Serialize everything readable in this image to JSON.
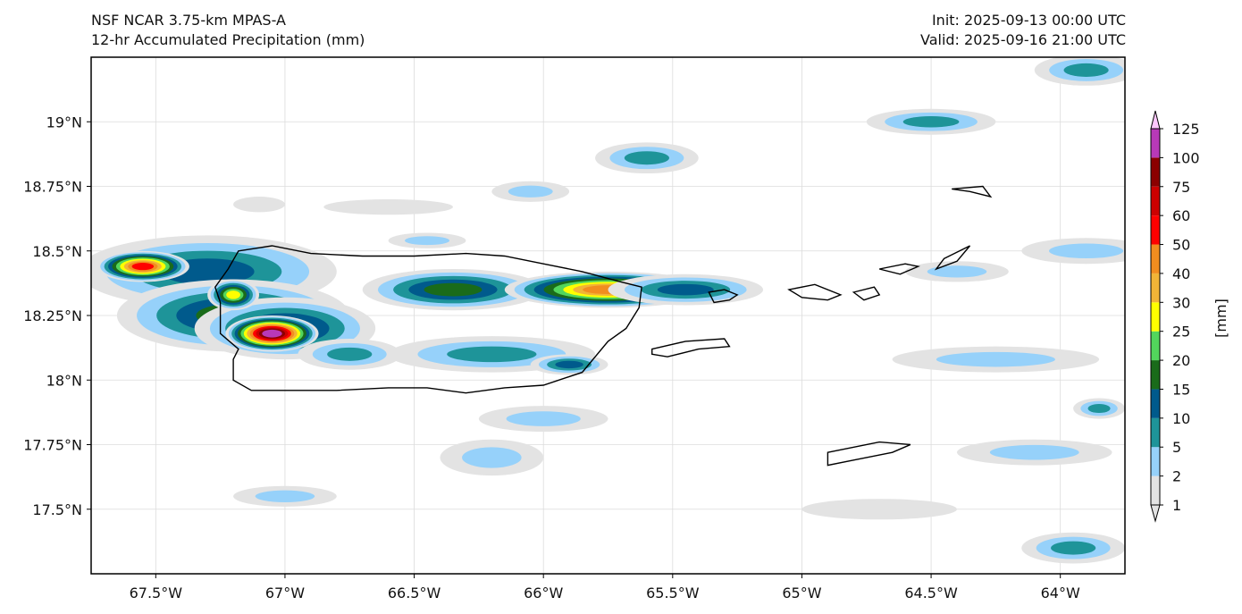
{
  "header": {
    "model": "NSF NCAR 3.75-km MPAS-A",
    "field": "12-hr Accumulated Precipitation (mm)",
    "init": "Init: 2025-09-13 00:00 UTC",
    "valid": "Valid: 2025-09-16 21:00 UTC"
  },
  "map": {
    "lon_range": [
      -67.75,
      -63.75
    ],
    "lat_range": [
      17.25,
      19.25
    ],
    "lon_ticks": [
      {
        "value": -67.5,
        "label": "67.5°W"
      },
      {
        "value": -67.0,
        "label": "67°W"
      },
      {
        "value": -66.5,
        "label": "66.5°W"
      },
      {
        "value": -66.0,
        "label": "66°W"
      },
      {
        "value": -65.5,
        "label": "65.5°W"
      },
      {
        "value": -65.0,
        "label": "65°W"
      },
      {
        "value": -64.5,
        "label": "64.5°W"
      },
      {
        "value": -64.0,
        "label": "64°W"
      }
    ],
    "lat_ticks": [
      {
        "value": 19.0,
        "label": "19°N"
      },
      {
        "value": 18.75,
        "label": "18.75°N"
      },
      {
        "value": 18.5,
        "label": "18.5°N"
      },
      {
        "value": 18.25,
        "label": "18.25°N"
      },
      {
        "value": 18.0,
        "label": "18°N"
      },
      {
        "value": 17.75,
        "label": "17.75°N"
      },
      {
        "value": 17.5,
        "label": "17.5°N"
      }
    ],
    "grid": true
  },
  "colorbar": {
    "unit_label": "[mm]",
    "levels": [
      "1",
      "2",
      "5",
      "10",
      "15",
      "20",
      "25",
      "30",
      "40",
      "50",
      "60",
      "75",
      "100",
      "125"
    ],
    "colors": [
      "#e3e3e3",
      "#96d1fa",
      "#1e9499",
      "#005a8c",
      "#1a6b1a",
      "#52d65c",
      "#ffff00",
      "#f2b437",
      "#f28d1f",
      "#ff0000",
      "#cc0000",
      "#8b0000",
      "#b839b8",
      "#ffc7ff"
    ]
  },
  "precip_cells": [
    {
      "lon": -67.3,
      "lat": 18.42,
      "rx": 0.5,
      "ry": 0.14,
      "peak": 10
    },
    {
      "lon": -67.55,
      "lat": 18.44,
      "rx": 0.18,
      "ry": 0.06,
      "peak": 50
    },
    {
      "lon": -67.2,
      "lat": 18.25,
      "rx": 0.45,
      "ry": 0.14,
      "peak": 15
    },
    {
      "lon": -67.0,
      "lat": 18.2,
      "rx": 0.35,
      "ry": 0.12,
      "peak": 15
    },
    {
      "lon": -67.05,
      "lat": 18.18,
      "rx": 0.18,
      "ry": 0.07,
      "peak": 100
    },
    {
      "lon": -67.2,
      "lat": 18.33,
      "rx": 0.1,
      "ry": 0.06,
      "peak": 25
    },
    {
      "lon": -66.35,
      "lat": 18.35,
      "rx": 0.35,
      "ry": 0.08,
      "peak": 15
    },
    {
      "lon": -65.75,
      "lat": 18.35,
      "rx": 0.4,
      "ry": 0.07,
      "peak": 40
    },
    {
      "lon": -65.45,
      "lat": 18.35,
      "rx": 0.3,
      "ry": 0.06,
      "peak": 10
    },
    {
      "lon": -65.6,
      "lat": 18.86,
      "rx": 0.2,
      "ry": 0.06,
      "peak": 5
    },
    {
      "lon": -64.5,
      "lat": 19.0,
      "rx": 0.25,
      "ry": 0.05,
      "peak": 5
    },
    {
      "lon": -63.9,
      "lat": 19.2,
      "rx": 0.2,
      "ry": 0.06,
      "peak": 5
    },
    {
      "lon": -66.2,
      "lat": 18.1,
      "rx": 0.4,
      "ry": 0.07,
      "peak": 5
    },
    {
      "lon": -65.9,
      "lat": 18.06,
      "rx": 0.15,
      "ry": 0.04,
      "peak": 10
    },
    {
      "lon": -66.75,
      "lat": 18.1,
      "rx": 0.2,
      "ry": 0.06,
      "peak": 5
    },
    {
      "lon": -66.0,
      "lat": 17.85,
      "rx": 0.25,
      "ry": 0.05,
      "peak": 2
    },
    {
      "lon": -66.2,
      "lat": 17.7,
      "rx": 0.2,
      "ry": 0.07,
      "peak": 2
    },
    {
      "lon": -67.0,
      "lat": 17.55,
      "rx": 0.2,
      "ry": 0.04,
      "peak": 2
    },
    {
      "lon": -64.25,
      "lat": 18.08,
      "rx": 0.4,
      "ry": 0.05,
      "peak": 2
    },
    {
      "lon": -64.1,
      "lat": 17.72,
      "rx": 0.3,
      "ry": 0.05,
      "peak": 2
    },
    {
      "lon": -63.95,
      "lat": 17.35,
      "rx": 0.2,
      "ry": 0.06,
      "peak": 5
    },
    {
      "lon": -63.9,
      "lat": 18.5,
      "rx": 0.25,
      "ry": 0.05,
      "peak": 2
    },
    {
      "lon": -64.4,
      "lat": 18.42,
      "rx": 0.2,
      "ry": 0.04,
      "peak": 2
    },
    {
      "lon": -63.85,
      "lat": 17.89,
      "rx": 0.1,
      "ry": 0.04,
      "peak": 5
    },
    {
      "lon": -66.05,
      "lat": 18.73,
      "rx": 0.15,
      "ry": 0.04,
      "peak": 2
    },
    {
      "lon": -66.45,
      "lat": 18.54,
      "rx": 0.15,
      "ry": 0.03,
      "peak": 2
    },
    {
      "lon": -64.7,
      "lat": 17.5,
      "rx": 0.3,
      "ry": 0.04,
      "peak": 1
    },
    {
      "lon": -66.6,
      "lat": 18.67,
      "rx": 0.25,
      "ry": 0.03,
      "peak": 1
    },
    {
      "lon": -67.1,
      "lat": 18.68,
      "rx": 0.1,
      "ry": 0.03,
      "peak": 1
    }
  ],
  "coastlines": [
    {
      "name": "Puerto Rico",
      "points": [
        [
          -67.18,
          18.5
        ],
        [
          -67.05,
          18.52
        ],
        [
          -66.9,
          18.49
        ],
        [
          -66.7,
          18.48
        ],
        [
          -66.5,
          18.48
        ],
        [
          -66.3,
          18.49
        ],
        [
          -66.15,
          18.48
        ],
        [
          -66.0,
          18.45
        ],
        [
          -65.85,
          18.42
        ],
        [
          -65.7,
          18.38
        ],
        [
          -65.62,
          18.36
        ],
        [
          -65.63,
          18.28
        ],
        [
          -65.68,
          18.2
        ],
        [
          -65.75,
          18.15
        ],
        [
          -65.85,
          18.03
        ],
        [
          -66.0,
          17.98
        ],
        [
          -66.15,
          17.97
        ],
        [
          -66.3,
          17.95
        ],
        [
          -66.45,
          17.97
        ],
        [
          -66.6,
          17.97
        ],
        [
          -66.8,
          17.96
        ],
        [
          -67.0,
          17.96
        ],
        [
          -67.13,
          17.96
        ],
        [
          -67.2,
          18.0
        ],
        [
          -67.2,
          18.08
        ],
        [
          -67.18,
          18.12
        ],
        [
          -67.25,
          18.18
        ],
        [
          -67.25,
          18.3
        ],
        [
          -67.27,
          18.36
        ],
        [
          -67.22,
          18.43
        ]
      ]
    },
    {
      "name": "Vieques",
      "points": [
        [
          -65.58,
          18.12
        ],
        [
          -65.45,
          18.15
        ],
        [
          -65.3,
          18.16
        ],
        [
          -65.28,
          18.13
        ],
        [
          -65.4,
          18.12
        ],
        [
          -65.52,
          18.09
        ],
        [
          -65.58,
          18.1
        ]
      ]
    },
    {
      "name": "Culebra",
      "points": [
        [
          -65.36,
          18.34
        ],
        [
          -65.3,
          18.35
        ],
        [
          -65.25,
          18.33
        ],
        [
          -65.28,
          18.31
        ],
        [
          -65.34,
          18.3
        ]
      ]
    },
    {
      "name": "St. Thomas",
      "points": [
        [
          -65.05,
          18.35
        ],
        [
          -64.95,
          18.37
        ],
        [
          -64.85,
          18.33
        ],
        [
          -64.9,
          18.31
        ],
        [
          -65.0,
          18.32
        ]
      ]
    },
    {
      "name": "St. John",
      "points": [
        [
          -64.8,
          18.34
        ],
        [
          -64.72,
          18.36
        ],
        [
          -64.7,
          18.33
        ],
        [
          -64.76,
          18.31
        ]
      ]
    },
    {
      "name": "Tortola",
      "points": [
        [
          -64.7,
          18.43
        ],
        [
          -64.6,
          18.45
        ],
        [
          -64.55,
          18.44
        ],
        [
          -64.62,
          18.41
        ]
      ]
    },
    {
      "name": "Anegada",
      "points": [
        [
          -64.42,
          18.74
        ],
        [
          -64.3,
          18.75
        ],
        [
          -64.27,
          18.71
        ],
        [
          -64.35,
          18.73
        ]
      ]
    },
    {
      "name": "Virgin Gorda",
      "points": [
        [
          -64.45,
          18.47
        ],
        [
          -64.35,
          18.52
        ],
        [
          -64.4,
          18.46
        ],
        [
          -64.48,
          18.43
        ]
      ]
    },
    {
      "name": "St. Croix",
      "points": [
        [
          -64.9,
          17.72
        ],
        [
          -64.7,
          17.76
        ],
        [
          -64.58,
          17.75
        ],
        [
          -64.65,
          17.72
        ],
        [
          -64.8,
          17.69
        ],
        [
          -64.9,
          17.67
        ]
      ]
    }
  ]
}
